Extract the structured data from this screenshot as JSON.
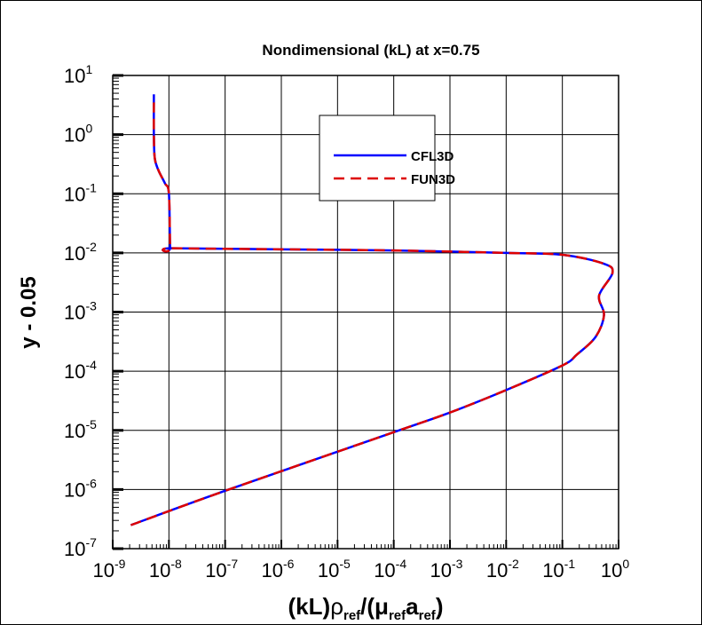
{
  "chart_data": {
    "type": "line",
    "title": "Nondimensional (kL) at x=0.75",
    "xlabel": {
      "main": "(kL)",
      "rho": "ρ",
      "ref1": "ref",
      "mid": "/(μ",
      "ref2": "ref",
      "a": "a",
      "ref3": "ref",
      "close": ")"
    },
    "ylabel": "y - 0.05",
    "xscale": "log",
    "yscale": "log",
    "xlim": [
      1e-09,
      1
    ],
    "ylim": [
      1e-07,
      10
    ],
    "grid": true,
    "x_ticks": [
      {
        "base": "10",
        "exp": "-9"
      },
      {
        "base": "10",
        "exp": "-8"
      },
      {
        "base": "10",
        "exp": "-7"
      },
      {
        "base": "10",
        "exp": "-6"
      },
      {
        "base": "10",
        "exp": "-5"
      },
      {
        "base": "10",
        "exp": "-4"
      },
      {
        "base": "10",
        "exp": "-3"
      },
      {
        "base": "10",
        "exp": "-2"
      },
      {
        "base": "10",
        "exp": "-1"
      },
      {
        "base": "10",
        "exp": "0"
      }
    ],
    "y_ticks": [
      {
        "base": "10",
        "exp": "-7"
      },
      {
        "base": "10",
        "exp": "-6"
      },
      {
        "base": "10",
        "exp": "-5"
      },
      {
        "base": "10",
        "exp": "-4"
      },
      {
        "base": "10",
        "exp": "-3"
      },
      {
        "base": "10",
        "exp": "-2"
      },
      {
        "base": "10",
        "exp": "-1"
      },
      {
        "base": "10",
        "exp": "0"
      },
      {
        "base": "10",
        "exp": "1"
      }
    ],
    "legend_position": "top-right",
    "series": [
      {
        "name": "CFL3D",
        "color": "#0000ff",
        "style": "solid",
        "x": [
          2.1e-09,
          1e-07,
          0.0001,
          0.001,
          0.01,
          0.1,
          0.18,
          0.39,
          0.55,
          0.45,
          0.78,
          0.54,
          0.1,
          0.01,
          0.0001,
          1e-06,
          1.1e-08,
          1.05e-08,
          1e-08,
          8.5e-09,
          6.5e-09,
          5.6e-09,
          5.4e-09,
          5.4e-09
        ],
        "y": [
          2.5e-07,
          9.5e-07,
          9.3e-06,
          2e-05,
          4.8e-05,
          0.000125,
          0.00019,
          0.00038,
          0.00089,
          0.0019,
          0.0046,
          0.0066,
          0.0093,
          0.01,
          0.011,
          0.0115,
          0.012,
          0.0125,
          0.1,
          0.15,
          0.25,
          0.4,
          1.0,
          4.8
        ]
      },
      {
        "name": "FUN3D",
        "color": "#dd0000",
        "style": "dashed",
        "x": [
          2.1e-09,
          1e-07,
          0.0001,
          0.001,
          0.01,
          0.1,
          0.18,
          0.39,
          0.55,
          0.45,
          0.78,
          0.54,
          0.1,
          0.01,
          0.0001,
          1e-06,
          1.1e-08,
          1.05e-08,
          1e-08,
          8.5e-09,
          6.5e-09,
          5.6e-09,
          5.4e-09,
          5.4e-09
        ],
        "y": [
          2.5e-07,
          9.5e-07,
          9.3e-06,
          2e-05,
          4.8e-05,
          0.000125,
          0.00019,
          0.00038,
          0.00089,
          0.0019,
          0.0046,
          0.0066,
          0.0093,
          0.01,
          0.011,
          0.0115,
          0.012,
          0.0125,
          0.1,
          0.15,
          0.25,
          0.4,
          1.0,
          3.5
        ]
      }
    ]
  }
}
